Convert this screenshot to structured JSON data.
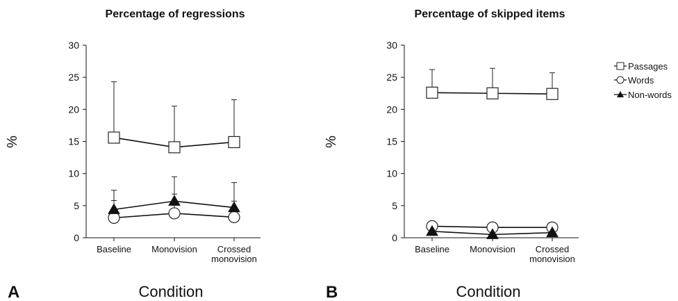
{
  "chart_data": [
    {
      "type": "line",
      "panel": "A",
      "title": "Percentage of regressions",
      "xlabel": "Condition",
      "ylabel": "%",
      "categories": [
        "Baseline",
        "Monovision",
        [
          "Crossed",
          "monovision"
        ]
      ],
      "yticks": [
        "0",
        "5",
        "10",
        "15",
        "20",
        "25",
        "30"
      ],
      "ylim": [
        0,
        30
      ],
      "grid": false,
      "series": [
        {
          "name": "Passages",
          "marker": "square",
          "values": [
            15.6,
            14.1,
            14.9
          ],
          "err": [
            8.7,
            6.4,
            6.6
          ]
        },
        {
          "name": "Words",
          "marker": "circle",
          "values": [
            3.1,
            3.8,
            3.2
          ],
          "err": [
            2.7,
            3.0,
            2.5
          ]
        },
        {
          "name": "Non-words",
          "marker": "triangle",
          "values": [
            4.4,
            5.7,
            4.7
          ],
          "err": [
            3.0,
            3.8,
            3.9
          ]
        }
      ]
    },
    {
      "type": "line",
      "panel": "B",
      "title": "Percentage of skipped items",
      "xlabel": "Condition",
      "ylabel": "%",
      "categories": [
        "Baseline",
        "Monovision",
        [
          "Crossed",
          "monovision"
        ]
      ],
      "yticks": [
        "0",
        "5",
        "10",
        "15",
        "20",
        "25",
        "30"
      ],
      "ylim": [
        0,
        30
      ],
      "grid": false,
      "legend_position": "top-right",
      "series": [
        {
          "name": "Passages",
          "marker": "square",
          "values": [
            22.6,
            22.5,
            22.4
          ],
          "err": [
            3.6,
            3.9,
            3.3
          ]
        },
        {
          "name": "Words",
          "marker": "circle",
          "values": [
            1.8,
            1.6,
            1.6
          ],
          "err": [
            0,
            0,
            0
          ]
        },
        {
          "name": "Non-words",
          "marker": "triangle",
          "values": [
            1.0,
            0.5,
            0.8
          ],
          "err": [
            0,
            0,
            0
          ]
        }
      ]
    }
  ],
  "legend": [
    "Passages",
    "Words",
    "Non-words"
  ]
}
